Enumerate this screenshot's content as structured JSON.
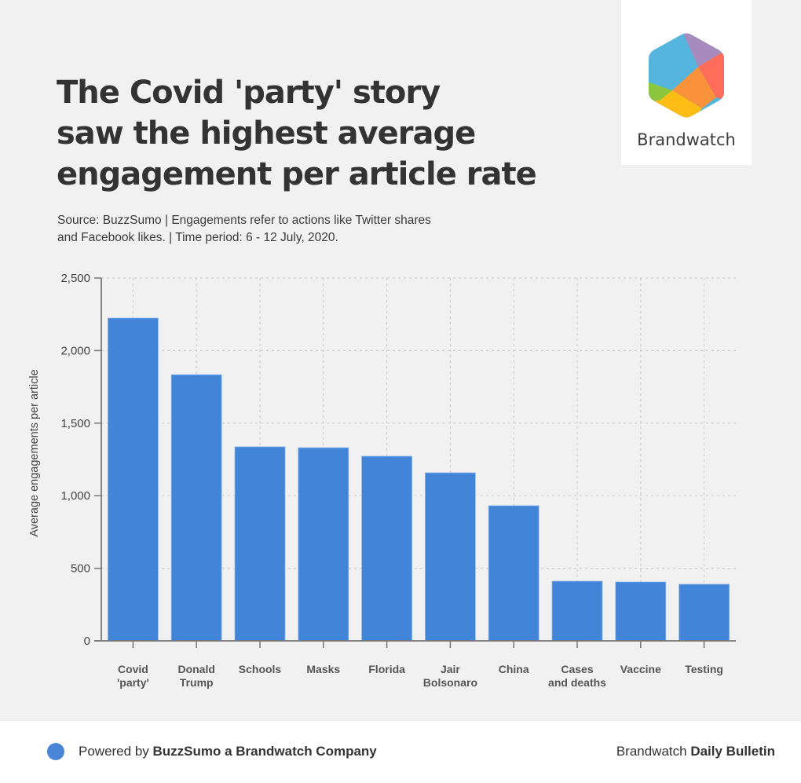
{
  "header": {
    "title_lines": [
      "The Covid 'party' story",
      "saw the highest average",
      "engagement per article rate"
    ],
    "subtitle_lines": [
      "Source: BuzzSumo | Engagements refer to actions like Twitter shares",
      "and Facebook likes. | Time period: 6 - 12 July, 2020."
    ]
  },
  "logo": {
    "text": "Brandwatch",
    "icon": "brandwatch-hexagon-logo"
  },
  "footer": {
    "left_prefix": "Powered by ",
    "left_bold": "BuzzSumo a Brandwatch Company",
    "right_prefix": "Brandwatch ",
    "right_bold": "Daily Bulletin",
    "dot_color": "#4a86d8"
  },
  "chart_data": {
    "type": "bar",
    "title": "The Covid 'party' story saw the highest average engagement per article rate",
    "xlabel": "",
    "ylabel": "Average engagements per article",
    "categories": [
      [
        "Covid",
        "'party'"
      ],
      [
        "Donald",
        "Trump"
      ],
      [
        "Schools"
      ],
      [
        "Masks"
      ],
      [
        "Florida"
      ],
      [
        "Jair",
        "Bolsonaro"
      ],
      [
        "China"
      ],
      [
        "Cases",
        "and deaths"
      ],
      [
        "Vaccine"
      ],
      [
        "Testing"
      ]
    ],
    "values": [
      2224,
      1834,
      1337,
      1331,
      1272,
      1158,
      931,
      411,
      406,
      390
    ],
    "ylim": [
      0,
      2500
    ],
    "yticks": [
      0,
      500,
      1000,
      1500,
      2000,
      2500
    ],
    "ytick_labels": [
      "0",
      "500",
      "1,000",
      "1,500",
      "2,000",
      "2,500"
    ],
    "grid": true,
    "bar_color": "#4284d7",
    "legend": "none"
  }
}
